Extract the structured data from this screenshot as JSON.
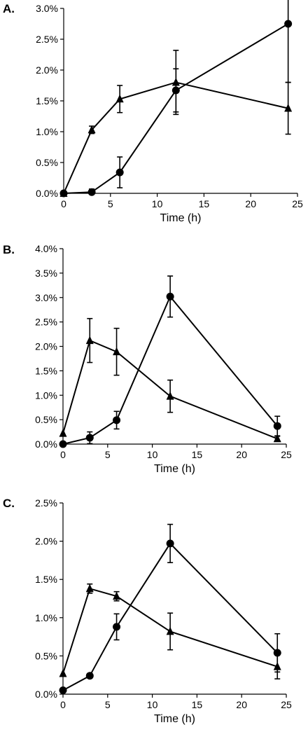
{
  "chart_data": [
    {
      "panel_label": "A.",
      "type": "line",
      "xlabel": "Time (h)",
      "ylabel": "",
      "xlim": [
        0,
        25
      ],
      "ylim": [
        0.0,
        3.0
      ],
      "x_ticks": [
        "0",
        "5",
        "10",
        "15",
        "20",
        "25"
      ],
      "y_ticks": [
        "0.0%",
        "0.5%",
        "1.0%",
        "1.5%",
        "2.0%",
        "2.5%",
        "3.0%"
      ],
      "grid": false,
      "series": [
        {
          "marker": "circle",
          "x": [
            0,
            3,
            6,
            12,
            24
          ],
          "y": [
            0.0,
            0.02,
            0.34,
            1.67,
            2.75
          ],
          "error": [
            0.0,
            0.05,
            0.25,
            0.35,
            0.95
          ]
        },
        {
          "marker": "triangle",
          "x": [
            0,
            3,
            6,
            12,
            24
          ],
          "y": [
            0.0,
            1.03,
            1.53,
            1.8,
            1.38
          ],
          "error": [
            0.0,
            0.06,
            0.22,
            0.52,
            0.42
          ]
        }
      ]
    },
    {
      "panel_label": "B.",
      "type": "line",
      "xlabel": "Time (h)",
      "ylabel": "",
      "xlim": [
        0,
        25
      ],
      "ylim": [
        0.0,
        4.0
      ],
      "x_ticks": [
        "0",
        "5",
        "10",
        "15",
        "20",
        "25"
      ],
      "y_ticks": [
        "0.0%",
        "0.5%",
        "1.0%",
        "1.5%",
        "2.0%",
        "2.5%",
        "3.0%",
        "3.5%",
        "4.0%"
      ],
      "grid": false,
      "series": [
        {
          "marker": "circle",
          "x": [
            0,
            3,
            6,
            12,
            24
          ],
          "y": [
            0.0,
            0.13,
            0.49,
            3.02,
            0.37
          ],
          "error": [
            0.0,
            0.12,
            0.18,
            0.42,
            0.2
          ]
        },
        {
          "marker": "triangle",
          "x": [
            0,
            3,
            6,
            12,
            24
          ],
          "y": [
            0.22,
            2.12,
            1.89,
            0.98,
            0.11
          ],
          "error": [
            0.0,
            0.45,
            0.48,
            0.33,
            0.05
          ]
        }
      ]
    },
    {
      "panel_label": "C.",
      "type": "line",
      "xlabel": "Time (h)",
      "ylabel": "",
      "xlim": [
        0,
        25
      ],
      "ylim": [
        0.0,
        2.5
      ],
      "x_ticks": [
        "0",
        "5",
        "10",
        "15",
        "20",
        "25"
      ],
      "y_ticks": [
        "0.0%",
        "0.5%",
        "1.0%",
        "1.5%",
        "2.0%",
        "2.5%"
      ],
      "grid": false,
      "series": [
        {
          "marker": "circle",
          "x": [
            0,
            3,
            6,
            12,
            24
          ],
          "y": [
            0.05,
            0.24,
            0.88,
            1.97,
            0.54
          ],
          "error": [
            0.0,
            0.03,
            0.17,
            0.25,
            0.25
          ]
        },
        {
          "marker": "triangle",
          "x": [
            0,
            3,
            6,
            12,
            24
          ],
          "y": [
            0.27,
            1.38,
            1.28,
            0.82,
            0.36
          ],
          "error": [
            0.0,
            0.06,
            0.06,
            0.24,
            0.16
          ]
        }
      ]
    }
  ]
}
